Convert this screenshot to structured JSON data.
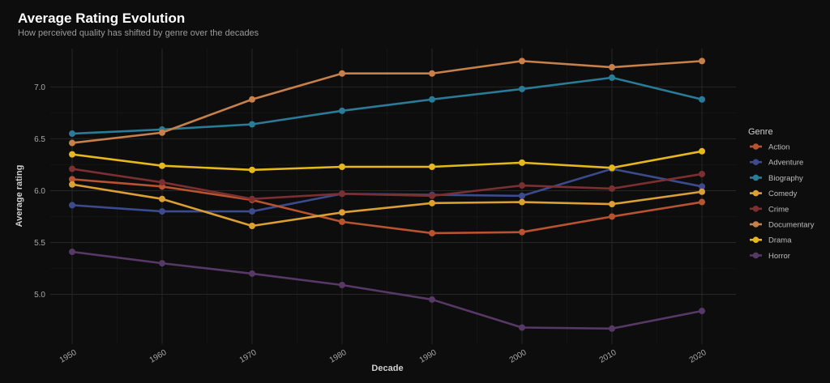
{
  "chart_data": {
    "type": "line",
    "title": "Average Rating Evolution",
    "subtitle": "How perceived quality has shifted by genre over the decades",
    "xlabel": "Decade",
    "ylabel": "Average rating",
    "x": [
      1950,
      1960,
      1970,
      1980,
      1990,
      2000,
      2010,
      2020
    ],
    "x_tick_labels": [
      "1950",
      "1960",
      "1970",
      "1980",
      "1990",
      "2000",
      "2010",
      "2020"
    ],
    "y_ticks": [
      5.0,
      5.5,
      6.0,
      6.5,
      7.0
    ],
    "y_tick_labels": [
      "5.0",
      "5.5",
      "6.0",
      "6.5",
      "7.0"
    ],
    "ylim": [
      4.52,
      7.37
    ],
    "grid": true,
    "legend_title": "Genre",
    "legend_position": "right",
    "series": [
      {
        "name": "Action",
        "color": "#b9532f",
        "values": [
          6.11,
          6.04,
          5.91,
          5.7,
          5.59,
          5.6,
          5.75,
          5.89
        ]
      },
      {
        "name": "Adventure",
        "color": "#3c4a8e",
        "values": [
          5.86,
          5.8,
          5.8,
          5.97,
          5.96,
          5.95,
          6.21,
          6.04
        ]
      },
      {
        "name": "Biography",
        "color": "#2a7b98",
        "values": [
          6.55,
          6.59,
          6.64,
          6.77,
          6.88,
          6.98,
          7.09,
          6.88
        ]
      },
      {
        "name": "Comedy",
        "color": "#dc9f33",
        "values": [
          6.06,
          5.92,
          5.66,
          5.79,
          5.88,
          5.89,
          5.87,
          5.99
        ]
      },
      {
        "name": "Crime",
        "color": "#7c2f30",
        "values": [
          6.21,
          6.08,
          5.92,
          5.97,
          5.95,
          6.05,
          6.02,
          6.16
        ]
      },
      {
        "name": "Documentary",
        "color": "#c7804a",
        "values": [
          6.46,
          6.56,
          6.88,
          7.13,
          7.13,
          7.25,
          7.19,
          7.25
        ]
      },
      {
        "name": "Drama",
        "color": "#e6b81c",
        "values": [
          6.35,
          6.24,
          6.2,
          6.23,
          6.23,
          6.27,
          6.22,
          6.38
        ]
      },
      {
        "name": "Horror",
        "color": "#573866",
        "values": [
          5.41,
          5.3,
          5.2,
          5.09,
          4.95,
          4.68,
          4.67,
          4.84
        ]
      }
    ]
  }
}
